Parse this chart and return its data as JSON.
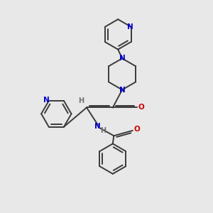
{
  "bg_color": "#e8e8e8",
  "bond_color": "#3a3a3a",
  "nitrogen_color": "#0000cc",
  "oxygen_color": "#cc0000",
  "h_color": "#707070",
  "line_width": 1.4,
  "dbo": 0.09,
  "xlim": [
    0,
    10
  ],
  "ylim": [
    0,
    10
  ]
}
